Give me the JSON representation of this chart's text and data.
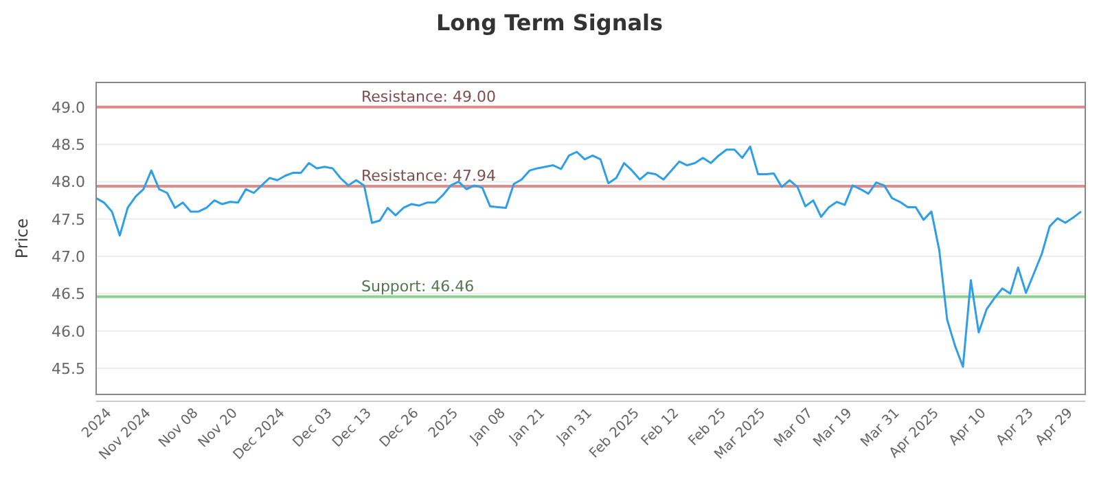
{
  "chart_data": {
    "type": "line",
    "title": "Long Term Signals",
    "ylabel": "Price",
    "categories": [
      null,
      null,
      "2024",
      null,
      null,
      null,
      null,
      "Nov 2024",
      null,
      null,
      null,
      null,
      null,
      "Nov 08",
      null,
      null,
      null,
      null,
      "Nov 20",
      null,
      null,
      null,
      null,
      null,
      "Dec 2024",
      null,
      null,
      null,
      null,
      null,
      "Dec 03",
      null,
      null,
      null,
      null,
      "Dec 13",
      null,
      null,
      null,
      null,
      null,
      "Dec 26",
      null,
      null,
      null,
      null,
      "2025",
      null,
      null,
      null,
      null,
      null,
      "Jan 08",
      null,
      null,
      null,
      null,
      "Jan 21",
      null,
      null,
      null,
      null,
      null,
      "Jan 31",
      null,
      null,
      null,
      null,
      null,
      "Feb 2025",
      null,
      null,
      null,
      null,
      "Feb 12",
      null,
      null,
      null,
      null,
      null,
      "Feb 25",
      null,
      null,
      null,
      null,
      "Mar 2025",
      null,
      null,
      null,
      null,
      null,
      "Mar 07",
      null,
      null,
      null,
      null,
      "Mar 19",
      null,
      null,
      null,
      null,
      null,
      "Mar 31",
      null,
      null,
      null,
      null,
      "Apr 2025",
      null,
      null,
      null,
      null,
      null,
      "Apr 10",
      null,
      null,
      null,
      null,
      null,
      "Apr 23",
      null,
      null,
      null,
      null,
      "Apr 29",
      null
    ],
    "series": [
      {
        "color": "#2e9fe6",
        "values": [
          47.78,
          47.72,
          47.6,
          47.28,
          47.65,
          47.8,
          47.9,
          48.15,
          47.9,
          47.85,
          47.65,
          47.72,
          47.6,
          47.6,
          47.65,
          47.75,
          47.7,
          47.73,
          47.72,
          47.9,
          47.85,
          47.95,
          48.05,
          48.02,
          48.08,
          48.12,
          48.12,
          48.25,
          48.18,
          48.2,
          48.18,
          48.05,
          47.95,
          48.02,
          47.95,
          47.45,
          47.48,
          47.65,
          47.55,
          47.65,
          47.7,
          47.68,
          47.72,
          47.72,
          47.82,
          47.95,
          48.0,
          47.9,
          47.95,
          47.92,
          47.67,
          47.66,
          47.65,
          47.97,
          48.03,
          48.15,
          48.18,
          48.2,
          48.22,
          48.17,
          48.35,
          48.4,
          48.3,
          48.35,
          48.3,
          47.98,
          48.05,
          48.25,
          48.15,
          48.03,
          48.12,
          48.1,
          48.03,
          48.15,
          48.27,
          48.22,
          48.25,
          48.32,
          48.25,
          48.35,
          48.43,
          48.43,
          48.32,
          48.47,
          48.1,
          48.1,
          48.11,
          47.93,
          48.02,
          47.93,
          47.67,
          47.75,
          47.53,
          47.66,
          47.73,
          47.69,
          47.95,
          47.9,
          47.84,
          47.99,
          47.95,
          47.78,
          47.73,
          47.66,
          47.66,
          47.49,
          47.6,
          47.08,
          46.15,
          45.8,
          45.52,
          46.68,
          45.98,
          46.29,
          46.44,
          46.57,
          46.5,
          46.85,
          46.51,
          46.77,
          47.03,
          47.4,
          47.51,
          47.45,
          47.52,
          47.6
        ]
      }
    ],
    "ylim": [
      45.15,
      49.33
    ],
    "yticks": [
      45.5,
      {
        "value": 46,
        "label": "46.0"
      },
      46.5,
      {
        "value": 47,
        "label": "47.0"
      },
      47.5,
      {
        "value": 48,
        "label": "48.0"
      },
      48.5,
      {
        "value": 49,
        "label": "49.0"
      }
    ],
    "grid": "y",
    "marker": "none",
    "line_style": "solid",
    "ref_lines": [
      {
        "axis": "y",
        "value": 49.0,
        "label": "Resistance: 49.00",
        "color": "#e08a8a"
      },
      {
        "axis": "y",
        "value": 47.94,
        "label": "Resistance: 47.94",
        "color": "#e08a8a"
      },
      {
        "axis": "y",
        "value": 46.46,
        "label": "Support: 46.46",
        "color": "#8fd08f"
      }
    ]
  }
}
